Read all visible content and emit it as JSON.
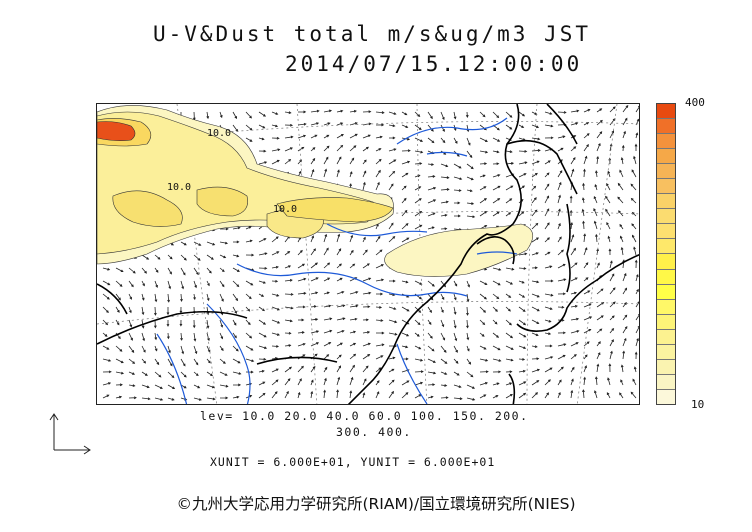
{
  "title": {
    "line1": "U-V&Dust total m/s&ug/m3 JST",
    "line2": "2014/07/15.12:00:00"
  },
  "colorbar": {
    "max_label": "400",
    "min_label": "10",
    "colors": [
      "#e84a10",
      "#f07028",
      "#f4923c",
      "#f5a848",
      "#f6b456",
      "#f8c060",
      "#fad268",
      "#fbdc70",
      "#fde070",
      "#fee86a",
      "#fff04a",
      "#fff848",
      "#ffff48",
      "#fff868",
      "#fdf478",
      "#fcf290",
      "#fbf3a0",
      "#faf3b0",
      "#faf5c4",
      "#fcf8da"
    ]
  },
  "levels": {
    "line1": "lev= 10.0 20.0 40.0 60.0 100. 150. 200.",
    "line2": "300. 400."
  },
  "units_line": "XUNIT = 6.000E+01, YUNIT = 6.000E+01",
  "credit": "©九州大学応用力学研究所(RIAM)/国立環境研究所(NIES)",
  "map": {
    "contour_labels": [
      "10.0",
      "10.0",
      "10.0"
    ]
  }
}
